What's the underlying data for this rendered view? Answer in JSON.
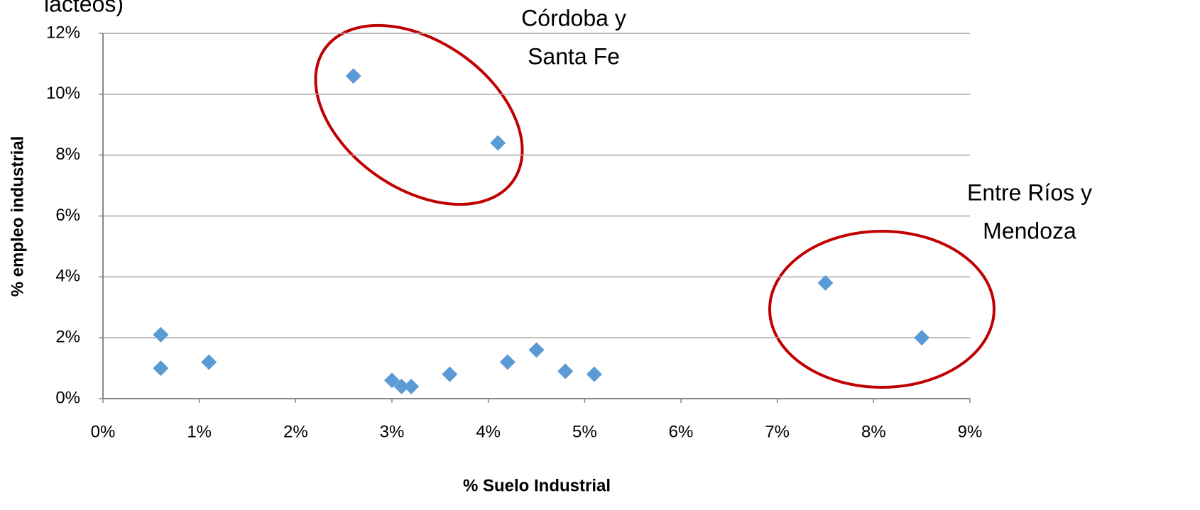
{
  "chart_data": {
    "type": "scatter",
    "title": "lácteos)",
    "x_label": "% Suelo Industrial",
    "y_label": "% empleo industrial",
    "x": [
      2.6,
      4.1,
      0.6,
      0.6,
      1.1,
      3.0,
      3.1,
      3.2,
      3.6,
      4.2,
      4.5,
      4.8,
      5.1,
      7.5,
      8.5
    ],
    "values": [
      10.6,
      8.4,
      2.1,
      1.0,
      1.2,
      0.6,
      0.4,
      0.4,
      0.8,
      1.2,
      1.6,
      0.9,
      0.8,
      3.8,
      2.0
    ],
    "color": "#5b9bd5",
    "xlim": [
      0,
      9
    ],
    "xticks": [
      {
        "value": 0,
        "label": "0%"
      },
      {
        "value": 1,
        "label": "1%"
      },
      {
        "value": 2,
        "label": "2%"
      },
      {
        "value": 3,
        "label": "3%"
      },
      {
        "value": 4,
        "label": "4%"
      },
      {
        "value": 5,
        "label": "5%"
      },
      {
        "value": 6,
        "label": "6%"
      },
      {
        "value": 7,
        "label": "7%"
      },
      {
        "value": 8,
        "label": "8%"
      },
      {
        "value": 9,
        "label": "9%"
      }
    ],
    "ylim": [
      0,
      12
    ],
    "yticks": [
      {
        "value": 0,
        "label": "0%"
      },
      {
        "value": 2,
        "label": "2%"
      },
      {
        "value": 4,
        "label": "4%"
      },
      {
        "value": 6,
        "label": "6%"
      },
      {
        "value": 8,
        "label": "8%"
      },
      {
        "value": 10,
        "label": "10%"
      },
      {
        "value": 12,
        "label": "12%"
      }
    ],
    "grid": true,
    "annotations": [
      {
        "lines": [
          "Córdoba y",
          "Santa Fe"
        ]
      },
      {
        "lines": [
          "Entre Ríos y",
          "Mendoza"
        ]
      }
    ]
  }
}
